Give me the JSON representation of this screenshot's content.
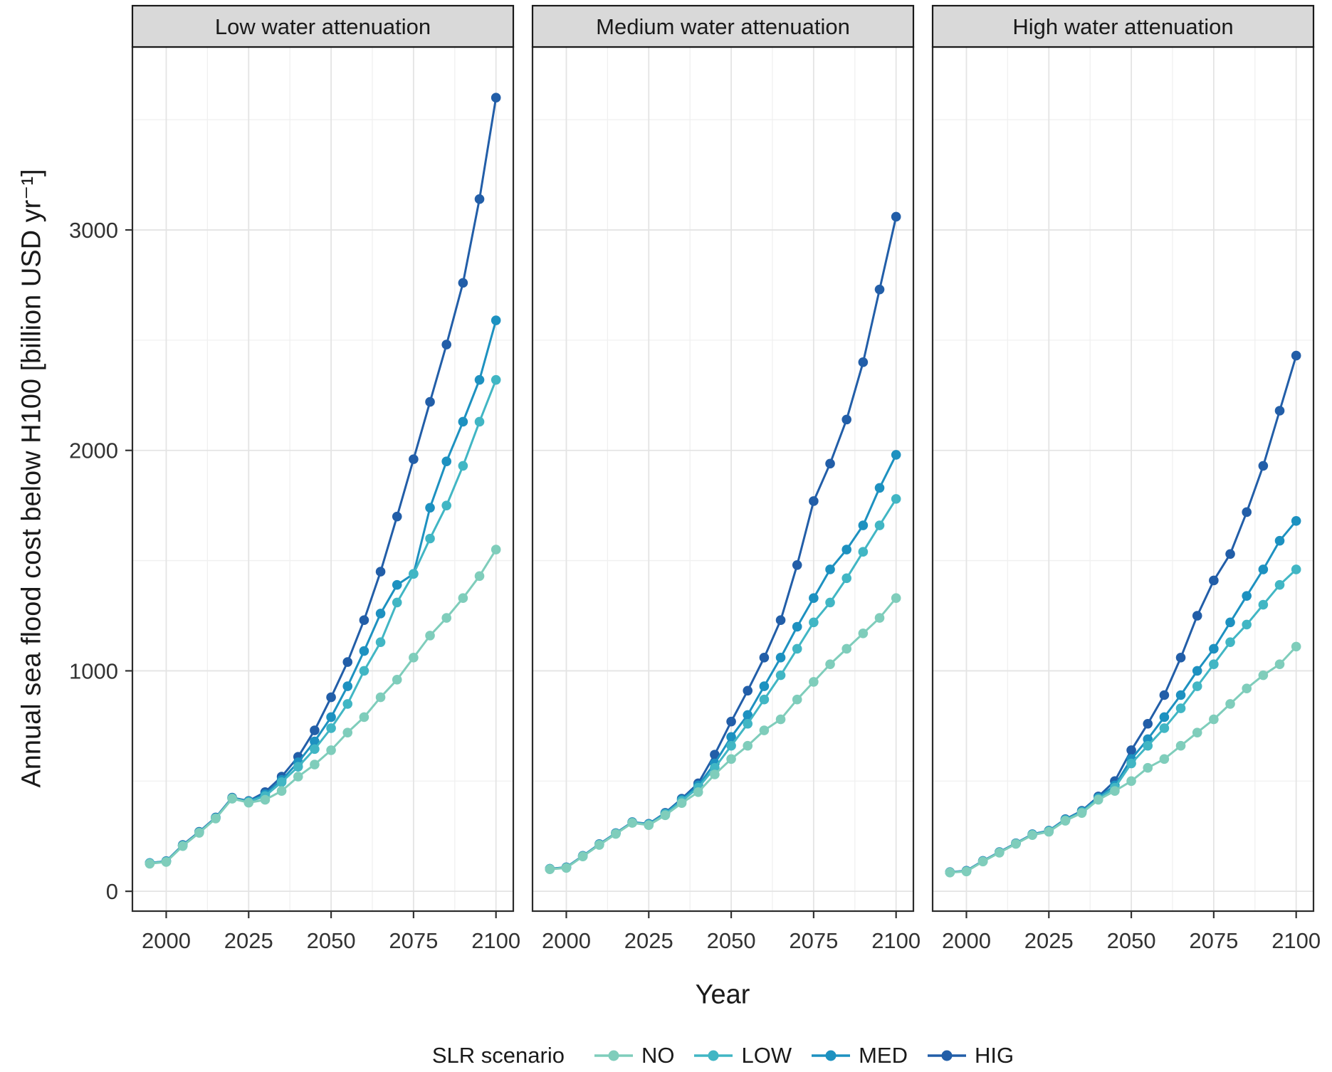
{
  "figure": {
    "y_axis_title": "Annual sea flood cost below H100 [billion USD yr⁻¹]",
    "x_axis_title": "Year",
    "legend_title": "SLR scenario"
  },
  "colors": {
    "NO": "#7fcdbb",
    "LOW": "#41b6c4",
    "MED": "#1d91c0",
    "HIG": "#225ea8",
    "strip_bg": "#d9d9d9",
    "strip_border": "#1a1a1a",
    "panel_border": "#2b2b2b",
    "grid_major": "#e4e4e4",
    "grid_minor": "#f0f0f0",
    "tick_text": "#333333",
    "tick_mark": "#333333",
    "strip_text": "#1a1a1a"
  },
  "chart_data": {
    "type": "line",
    "title": "",
    "xlabel": "Year",
    "ylabel": "Annual sea flood cost below H100 [billion USD yr⁻¹]",
    "x": [
      1995,
      2000,
      2005,
      2010,
      2015,
      2020,
      2025,
      2030,
      2035,
      2040,
      2045,
      2050,
      2055,
      2060,
      2065,
      2070,
      2075,
      2080,
      2085,
      2090,
      2095,
      2100
    ],
    "xlim": [
      1989.75,
      2105.25
    ],
    "ylim": [
      -90,
      3830
    ],
    "x_ticks": [
      2000,
      2025,
      2050,
      2075,
      2100
    ],
    "x_minor_ticks": [
      2012.5,
      2037.5,
      2062.5,
      2087.5
    ],
    "y_ticks": [
      0,
      1000,
      2000,
      3000
    ],
    "y_minor_ticks": [
      500,
      1500,
      2500,
      3500
    ],
    "grid": true,
    "legend_position": "bottom",
    "legend_title": "SLR scenario",
    "legend_entries": [
      "NO",
      "LOW",
      "MED",
      "HIG"
    ],
    "panels": [
      {
        "title": "Low water attenuation",
        "series": [
          {
            "name": "NO",
            "values": [
              125,
              133,
              205,
              265,
              330,
              420,
              402,
              415,
              455,
              520,
              575,
              640,
              720,
              790,
              880,
              960,
              1060,
              1160,
              1240,
              1330,
              1430,
              1550
            ]
          },
          {
            "name": "LOW",
            "values": [
              127,
              135,
              207,
              267,
              332,
              422,
              406,
              432,
              495,
              565,
              645,
              740,
              850,
              1000,
              1130,
              1310,
              1440,
              1600,
              1750,
              1930,
              2130,
              2320
            ]
          },
          {
            "name": "MED",
            "values": [
              128,
              136,
              208,
              268,
              333,
              423,
              408,
              440,
              505,
              585,
              680,
              790,
              930,
              1090,
              1260,
              1390,
              1440,
              1740,
              1950,
              2130,
              2320,
              2590
            ]
          },
          {
            "name": "HIG",
            "values": [
              128,
              137,
              210,
              270,
              335,
              425,
              410,
              450,
              520,
              610,
              730,
              880,
              1040,
              1230,
              1450,
              1700,
              1960,
              2220,
              2480,
              2760,
              3140,
              3600
            ]
          }
        ]
      },
      {
        "title": "Medium water attenuation",
        "series": [
          {
            "name": "NO",
            "values": [
              100,
              106,
              158,
              210,
              260,
              310,
              300,
              345,
              400,
              450,
              530,
              600,
              660,
              730,
              780,
              870,
              950,
              1030,
              1100,
              1170,
              1240,
              1330
            ]
          },
          {
            "name": "LOW",
            "values": [
              101,
              107,
              159,
              212,
              262,
              312,
              303,
              350,
              410,
              470,
              560,
              660,
              760,
              870,
              980,
              1100,
              1220,
              1310,
              1420,
              1540,
              1660,
              1780
            ]
          },
          {
            "name": "MED",
            "values": [
              102,
              108,
              160,
              213,
              263,
              313,
              305,
              353,
              415,
              480,
              580,
              700,
              800,
              930,
              1060,
              1200,
              1330,
              1460,
              1550,
              1660,
              1830,
              1980
            ]
          },
          {
            "name": "HIG",
            "values": [
              102,
              109,
              161,
              214,
              264,
              314,
              306,
              356,
              420,
              490,
              620,
              770,
              910,
              1060,
              1230,
              1480,
              1770,
              1940,
              2140,
              2400,
              2730,
              3060
            ]
          }
        ]
      },
      {
        "title": "High water attenuation",
        "series": [
          {
            "name": "NO",
            "values": [
              85,
              90,
              135,
              175,
              215,
              255,
              270,
              320,
              355,
              415,
              455,
              500,
              560,
              600,
              660,
              720,
              780,
              850,
              920,
              980,
              1030,
              1110
            ]
          },
          {
            "name": "LOW",
            "values": [
              86,
              91,
              136,
              176,
              216,
              257,
              273,
              323,
              360,
              420,
              470,
              580,
              660,
              740,
              830,
              930,
              1030,
              1130,
              1210,
              1300,
              1390,
              1460
            ]
          },
          {
            "name": "MED",
            "values": [
              86,
              92,
              137,
              177,
              217,
              258,
              274,
              325,
              362,
              425,
              480,
              600,
              690,
              790,
              890,
              1000,
              1100,
              1220,
              1340,
              1460,
              1590,
              1680
            ]
          },
          {
            "name": "HIG",
            "values": [
              87,
              93,
              138,
              178,
              218,
              259,
              275,
              327,
              365,
              430,
              500,
              640,
              760,
              890,
              1060,
              1250,
              1410,
              1530,
              1720,
              1930,
              2180,
              2430
            ]
          }
        ]
      }
    ]
  }
}
